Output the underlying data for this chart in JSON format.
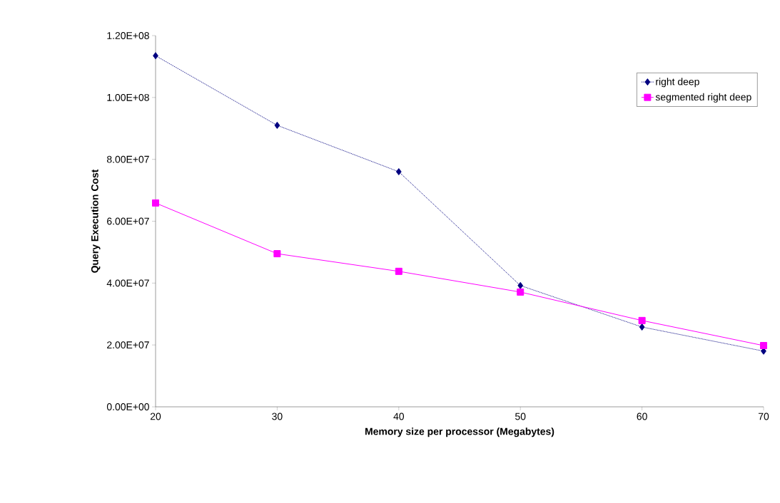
{
  "chart_data": {
    "type": "line",
    "xlabel": "Memory size per processor (Megabytes)",
    "ylabel": "Query Execution Cost",
    "x": [
      20,
      30,
      40,
      50,
      60,
      70
    ],
    "series": [
      {
        "name": "right deep",
        "color": "#000080",
        "marker": "diamond",
        "line_style": "dotted",
        "values": [
          113500000,
          91000000,
          76000000,
          39200000,
          25800000,
          18000000
        ]
      },
      {
        "name": "segmented right deep",
        "color": "#ff00ff",
        "marker": "square",
        "line_style": "solid",
        "values": [
          65900000,
          49500000,
          43800000,
          37100000,
          27900000,
          19800000
        ]
      }
    ],
    "xlim": [
      20,
      70
    ],
    "xticks": [
      20,
      30,
      40,
      50,
      60,
      70
    ],
    "ylim": [
      0,
      120000000
    ],
    "yticks": [
      {
        "value": 0,
        "label": "0.00E+00"
      },
      {
        "value": 20000000,
        "label": "2.00E+07"
      },
      {
        "value": 40000000,
        "label": "4.00E+07"
      },
      {
        "value": 60000000,
        "label": "6.00E+07"
      },
      {
        "value": 80000000,
        "label": "8.00E+07"
      },
      {
        "value": 100000000,
        "label": "1.00E+08"
      },
      {
        "value": 120000000,
        "label": "1.20E+08"
      }
    ],
    "legend": "top right",
    "grid": false
  }
}
